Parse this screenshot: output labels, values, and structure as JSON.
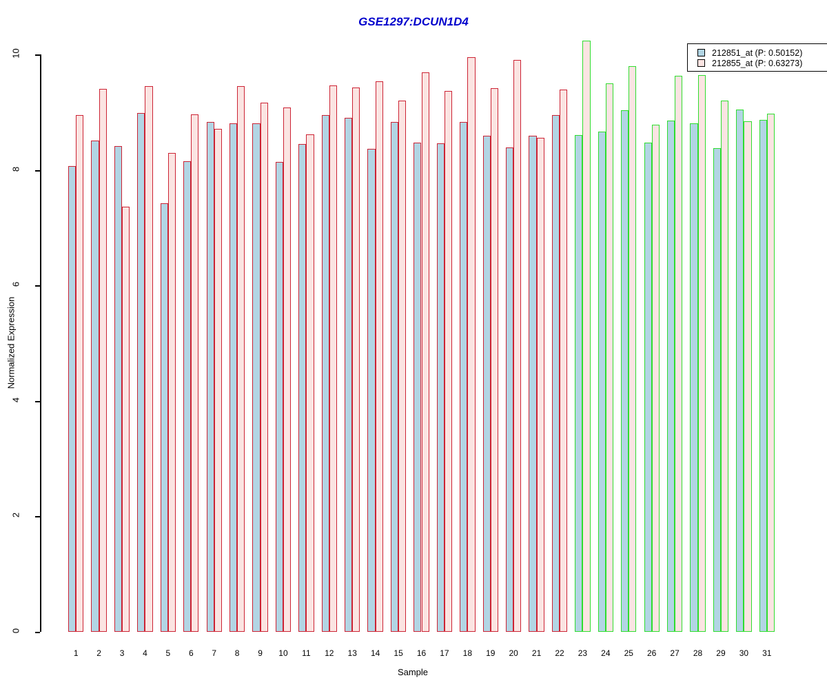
{
  "title": {
    "text": "GSE1297:DCUN1D4",
    "color": "#0000CC"
  },
  "axes": {
    "y_label": "Normalized Expression",
    "x_label": "Sample",
    "y_ticks": [
      "0",
      "2",
      "4",
      "6",
      "8",
      "10"
    ],
    "y_range": [
      0,
      10
    ]
  },
  "legend": {
    "position": "top-right",
    "items": [
      {
        "label": "212851_at (P: 0.50152)",
        "fill": "#B2D5E4",
        "border": "#000000"
      },
      {
        "label": "212855_at (P: 0.63273)",
        "fill": "#FBE4E2",
        "border": "#000000"
      }
    ]
  },
  "colors": {
    "title": "#0000CC",
    "axis": "#000000",
    "group1_border": "#CC2233",
    "group2_border": "#2EDD2E",
    "series1_fill": "#B2D5E4",
    "series2_fill": "#FBE4E2"
  },
  "chart_data": {
    "type": "bar",
    "title": "GSE1297:DCUN1D4",
    "xlabel": "Sample",
    "ylabel": "Normalized Expression",
    "ylim": [
      0,
      10
    ],
    "y_ticks": [
      0,
      2,
      4,
      6,
      8,
      10
    ],
    "grid": false,
    "legend_position": "top-right",
    "categories": [
      "1",
      "2",
      "3",
      "4",
      "5",
      "6",
      "7",
      "8",
      "9",
      "10",
      "11",
      "12",
      "13",
      "14",
      "15",
      "16",
      "17",
      "18",
      "19",
      "20",
      "21",
      "22",
      "23",
      "24",
      "25",
      "26",
      "27",
      "28",
      "29",
      "30",
      "31"
    ],
    "series": [
      {
        "name": "212851_at (P: 0.50152)",
        "fill": "#B2D5E4",
        "values": [
          8.07,
          8.51,
          8.42,
          8.99,
          7.42,
          8.15,
          8.83,
          8.81,
          8.81,
          8.14,
          8.45,
          8.95,
          8.9,
          8.37,
          8.83,
          8.48,
          8.46,
          8.83,
          8.6,
          8.39,
          8.6,
          8.95,
          8.61,
          8.67,
          9.04,
          8.47,
          8.86,
          8.81,
          8.38,
          9.05,
          8.87
        ]
      },
      {
        "name": "212855_at (P: 0.63273)",
        "fill": "#FBE4E2",
        "values": [
          8.95,
          9.41,
          7.37,
          9.45,
          8.3,
          8.96,
          8.72,
          9.46,
          9.17,
          9.08,
          8.62,
          9.47,
          9.43,
          9.54,
          9.2,
          9.69,
          9.37,
          9.96,
          9.42,
          9.91,
          8.56,
          9.4,
          10.24,
          9.5,
          9.8,
          8.79,
          9.63,
          9.64,
          9.2,
          8.84,
          8.98
        ]
      }
    ],
    "bar_border_groups": [
      {
        "samples": "1-22",
        "border": "#CC2233"
      },
      {
        "samples": "23-31",
        "border": "#2EDD2E"
      }
    ]
  }
}
